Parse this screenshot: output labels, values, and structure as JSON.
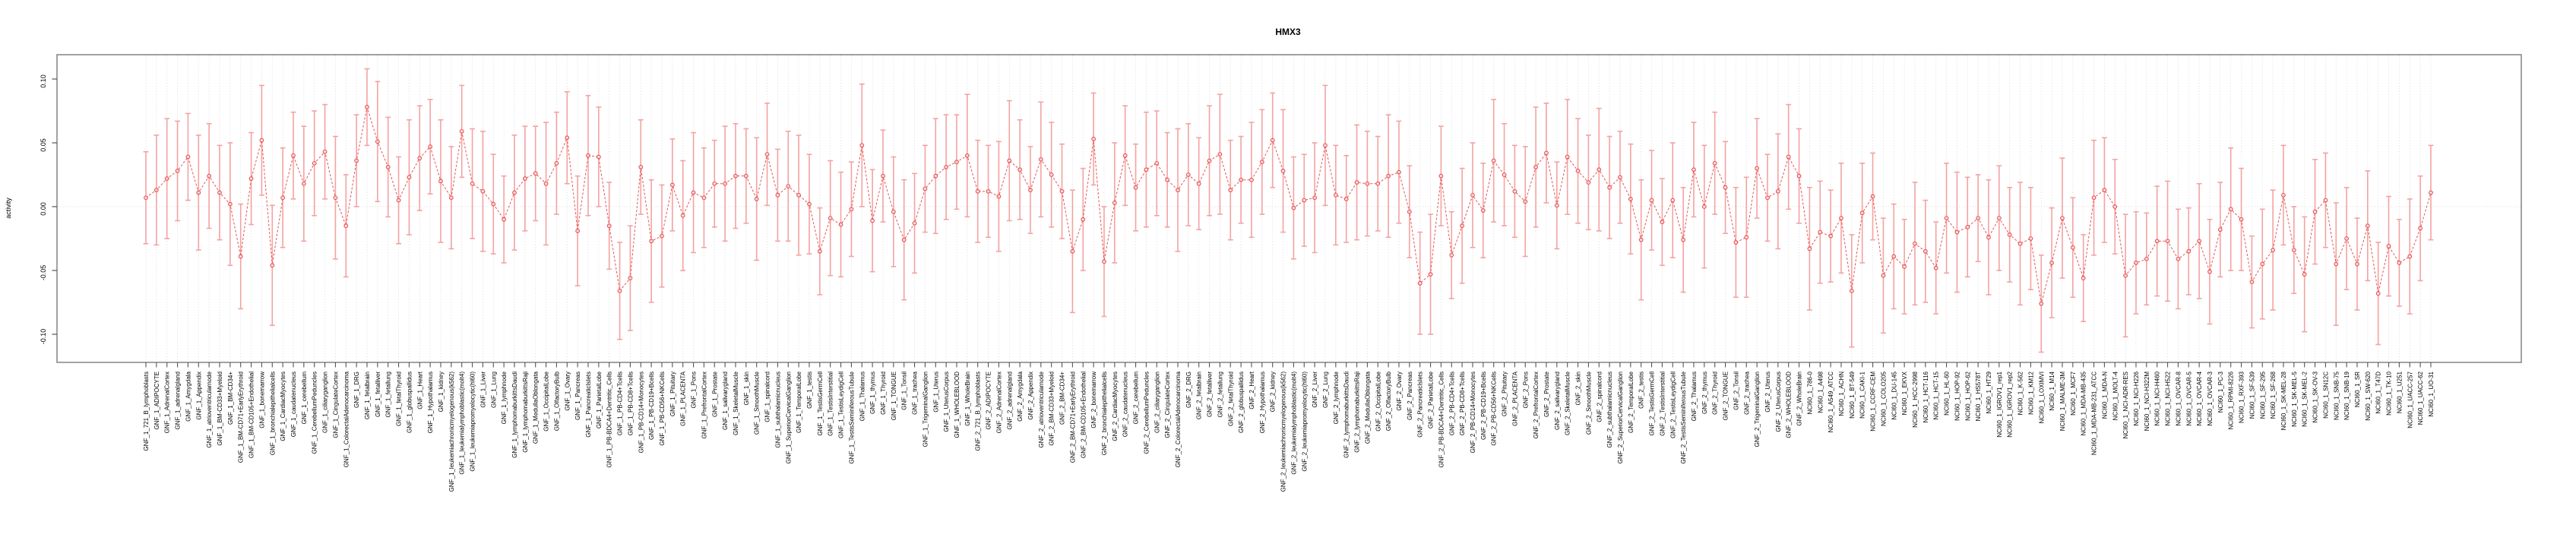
{
  "title": "HMX3",
  "ylabel": "activity",
  "colors": {
    "error_bar": "#f4a2a2",
    "line_point": "#e65555",
    "frame": "#8a8a8a",
    "tick": "#555555",
    "grid": "#d4d4d4",
    "text": "#000000",
    "background": "#ffffff"
  },
  "chart_data": {
    "type": "line",
    "title": "HMX3",
    "xlabel": "",
    "ylabel": "activity",
    "ylim": [
      -0.122,
      0.112
    ],
    "yticks": [
      0.1,
      0.05,
      0.0,
      -0.05,
      -0.1
    ],
    "ytick_labels": [
      "0.10",
      "0.05",
      "0.00",
      "-0.05",
      "-0.10"
    ],
    "grid": "vertical-dotted-per-category, dotted zero line",
    "legend": "none",
    "marker": "open-circle",
    "line_style": "dashed",
    "error_bars": true,
    "categories": [
      "GNF_1_721_B_lymphoblasts",
      "GNF_1_ADIPOCYTE",
      "GNF_1_AdrenalCortex",
      "GNF_1_adrenalgland",
      "GNF_1_Amygdala",
      "GNF_1_Appendix",
      "GNF_1_atrioventricularnode",
      "GNF_1_BM-CD33+Myeloid",
      "GNF_1_BM-CD34+",
      "GNF_1_BM-CD71+EarlyErythroid",
      "GNF_1_BM-CD105+Endothelial",
      "GNF_1_bonemarrow",
      "GNF_1_bronchialepithelialcells",
      "GNF_1_CardiacMyocytes",
      "GNF_1_caudatenucleus",
      "GNF_1_cerebellum",
      "GNF_1_CerebellumPeduncles",
      "GNF_1_ciliaryganglion",
      "GNF_1_CingulateCortex",
      "GNF_1_ColorectalAdenocarcinoma",
      "GNF_1_DRG",
      "GNF_1_fetalbrain",
      "GNF_1_fetalliver",
      "GNF_1_fetallung",
      "GNF_1_fetalThyroid",
      "GNF_1_globuspallidus",
      "GNF_1_Heart",
      "GNF_1_Hypothalamus",
      "GNF_1_kidney",
      "GNF_1_leukemiachronicmyelogenous(k562)",
      "GNF_1_leukemialymphoblastic(molt4)",
      "GNF_1_leukemiapromyelocytic(hl60)",
      "GNF_1_Liver",
      "GNF_1_Lung",
      "GNF_1_lymphnode",
      "GNF_1_lymphomaburkittsDaudi",
      "GNF_1_lymphomaburkittsRaji",
      "GNF_1_MedullaOblongata",
      "GNF_1_OccipitalLobe",
      "GNF_1_OlfactoryBulb",
      "GNF_1_Ovary",
      "GNF_1_Pancreas",
      "GNF_1_PancreaticIslets",
      "GNF_1_ParietalLobe",
      "GNF_1_PB-BDCA4+Dentritic_Cells",
      "GNF_1_PB-CD4+Tcells",
      "GNF_1_PB-CD8+Tcells",
      "GNF_1_PB-CD14+Monocytes",
      "GNF_1_PB-CD19+Bcells",
      "GNF_1_PB-CD56+NKCells",
      "GNF_1_Pituitary",
      "GNF_1_PLACENTA",
      "GNF_1_Pons",
      "GNF_1_PrefrontalCortex",
      "GNF_1_Prostate",
      "GNF_1_salivarygland",
      "GNF_1_SkeletalMuscle",
      "GNF_1_skin",
      "GNF_1_SmoothMuscle",
      "GNF_1_spinalcord",
      "GNF_1_subthalamicnucleus",
      "GNF_1_SuperiorCervicalGanglion",
      "GNF_1_TemporalLobe",
      "GNF_1_testis",
      "GNF_1_TestisGermCell",
      "GNF_1_TestisInterstitial",
      "GNF_1_TestisLeydigCell",
      "GNF_1_TestisSeminiferousTubule",
      "GNF_1_Thalamus",
      "GNF_1_thymus",
      "GNF_1_Thyroid",
      "GNF_1_TONGUE",
      "GNF_1_Tonsil",
      "GNF_1_trachea",
      "GNF_1_TrigeminalGanglion",
      "GNF_1_Uterus",
      "GNF_1_UterusCorpus",
      "GNF_1_WHOLEBLOOD",
      "GNF_1_WholeBrain",
      "GNF_2_721_B_lymphoblasts",
      "GNF_2_ADIPOCYTE",
      "GNF_2_AdrenalCortex",
      "GNF_2_adrenalgland",
      "GNF_2_Amygdala",
      "GNF_2_Appendix",
      "GNF_2_atrioventricularnode",
      "GNF_2_BM-CD33+Myeloid",
      "GNF_2_BM-CD34+",
      "GNF_2_BM-CD71+EarlyErythroid",
      "GNF_2_BM-CD105+Endothelial",
      "GNF_2_bonemarrow",
      "GNF_2_bronchialepithelialcells",
      "GNF_2_CardiacMyocytes",
      "GNF_2_caudatenucleus",
      "GNF_2_cerebellum",
      "GNF_2_CerebellumPeduncles",
      "GNF_2_ciliaryganglion",
      "GNF_2_CingulateCortex",
      "GNF_2_ColorectalAdenocarcinoma",
      "GNF_2_DRG",
      "GNF_2_fetalbrain",
      "GNF_2_fetalliver",
      "GNF_2_fetallung",
      "GNF_2_fetalThyroid",
      "GNF_2_globuspallidus",
      "GNF_2_Heart",
      "GNF_2_Hypothalamus",
      "GNF_2_kidney",
      "GNF_2_leukemiachronicmyelogenous(k562)",
      "GNF_2_leukemialymphoblastic(molt4)",
      "GNF_2_leukemiapromyelocytic(hl60)",
      "GNF_2_Liver",
      "GNF_2_Lung",
      "GNF_2_lymphnode",
      "GNF_2_lymphomaburkittsDaudi",
      "GNF_2_lymphomaburkittsRaji",
      "GNF_2_MedullaOblongata",
      "GNF_2_OccipitalLobe",
      "GNF_2_OlfactoryBulb",
      "GNF_2_Ovary",
      "GNF_2_Pancreas",
      "GNF_2_PancreaticIslets",
      "GNF_2_ParietalLobe",
      "GNF_2_PB-BDCA4+Dentritic_Cells",
      "GNF_2_PB-CD4+Tcells",
      "GNF_2_PB-CD8+Tcells",
      "GNF_2_PB-CD14+Monocytes",
      "GNF_2_PB-CD19+Bcells",
      "GNF_2_PB-CD56+NKCells",
      "GNF_2_Pituitary",
      "GNF_2_PLACENTA",
      "GNF_2_Pons",
      "GNF_2_PrefrontalCortex",
      "GNF_2_Prostate",
      "GNF_2_salivarygland",
      "GNF_2_SkeletalMuscle",
      "GNF_2_skin",
      "GNF_2_SmoothMuscle",
      "GNF_2_spinalcord",
      "GNF_2_subthalamicnucleus",
      "GNF_2_SuperiorCervicalGanglion",
      "GNF_2_TemporalLobe",
      "GNF_2_testis",
      "GNF_2_TestisGermCell",
      "GNF_2_TestisInterstitial",
      "GNF_2_TestisLeydigCell",
      "GNF_2_TestisSeminiferousTubule",
      "GNF_2_Thalamus",
      "GNF_2_thymus",
      "GNF_2_Thyroid",
      "GNF_2_TONGUE",
      "GNF_2_Tonsil",
      "GNF_2_trachea",
      "GNF_2_TrigeminalGanglion",
      "GNF_2_Uterus",
      "GNF_2_UterusCorpus",
      "GNF_2_WHOLEBLOOD",
      "GNF_2_WholeBrain",
      "NCI60_1_786-0",
      "NCI60_1_A498",
      "NCI60_1_A549_ATCC",
      "NCI60_1_ACHN",
      "NCI60_1_BT-549",
      "NCI60_1_CAKI-1",
      "NCI60_1_CCRF-CEM",
      "NCI60_1_COLO205",
      "NCI60_1_DU-145",
      "NCI60_1_EKVX",
      "NCI60_1_HCC-2998",
      "NCI60_1_HCT-116",
      "NCI60_1_HCT-15",
      "NCI60_1_HL-60",
      "NCI60_1_HOP-92",
      "NCI60_1_HOP-62",
      "NCI60_1_HS578T",
      "NCI60_1_HT29",
      "NCI60_1_IGROV1_rep1",
      "NCI60_1_IGROV1_rep2",
      "NCI60_1_K-562",
      "NCI60_1_KM12",
      "NCI60_1_LOXIMVI",
      "NCI60_1_M14",
      "NCI60_1_MALME-3M",
      "NCI60_1_MCF7",
      "NCI60_1_MDA-MB-435",
      "NCI60_1_MDA-MB-231_ATCC",
      "NCI60_1_MDA-N",
      "NCI60_1_MOLT-4",
      "NCI60_1_NCI-ADR-RES",
      "NCI60_1_NCI-H226",
      "NCI60_1_NCI-H322M",
      "NCI60_1_NCI-H460",
      "NCI60_1_NCI-H522",
      "NCI60_1_OVCAR-8",
      "NCI60_1_OVCAR-5",
      "NCI60_1_OVCAR-4",
      "NCI60_1_OVCAR-3",
      "NCI60_1_PC-3",
      "NCI60_1_RPMI-8226",
      "NCI60_1_RXF-393",
      "NCI60_1_SF-539",
      "NCI60_1_SF-295",
      "NCI60_1_SF-268",
      "NCI60_1_SK-MEL-28",
      "NCI60_1_SK-MEL-5",
      "NCI60_1_SK-MEL-2",
      "NCI60_1_SK-OV-3",
      "NCI60_1_SN12C",
      "NCI60_1_SNB-75",
      "NCI60_1_SNB-19",
      "NCI60_1_SR",
      "NCI60_1_SW-620",
      "NCI60_1_T47D",
      "NCI60_1_TK-10",
      "NCI60_1_U251",
      "NCI60_1_UACC-257",
      "NCI60_1_UACC-62",
      "NCI60_1_UO-31"
    ],
    "values": [
      0.007,
      0.013,
      0.022,
      0.028,
      0.039,
      0.011,
      0.024,
      0.011,
      0.002,
      -0.039,
      0.022,
      0.052,
      -0.046,
      0.007,
      0.04,
      0.018,
      0.034,
      0.043,
      0.007,
      -0.015,
      0.036,
      0.078,
      0.051,
      0.031,
      0.005,
      0.023,
      0.038,
      0.047,
      0.02,
      0.007,
      0.059,
      0.018,
      0.012,
      0.002,
      -0.01,
      0.011,
      0.022,
      0.026,
      0.018,
      0.034,
      0.054,
      -0.019,
      0.04,
      0.039,
      -0.015,
      -0.066,
      -0.056,
      0.031,
      -0.027,
      -0.023,
      0.017,
      -0.007,
      0.011,
      0.007,
      0.018,
      0.018,
      0.024,
      0.024,
      0.006,
      0.041,
      0.009,
      0.016,
      0.009,
      0.002,
      -0.035,
      -0.009,
      -0.014,
      -0.002,
      0.048,
      -0.011,
      0.024,
      -0.004,
      -0.026,
      -0.013,
      0.014,
      0.024,
      0.031,
      0.035,
      0.04,
      0.012,
      0.012,
      0.008,
      0.036,
      0.029,
      0.013,
      0.037,
      0.025,
      0.012,
      -0.035,
      -0.01,
      0.053,
      -0.043,
      0.003,
      0.04,
      0.015,
      0.029,
      0.034,
      0.021,
      0.013,
      0.025,
      0.018,
      0.036,
      0.041,
      0.013,
      0.021,
      0.021,
      0.035,
      0.052,
      0.028,
      -0.001,
      0.005,
      0.007,
      0.048,
      0.009,
      0.006,
      0.019,
      0.018,
      0.018,
      0.024,
      0.027,
      -0.004,
      -0.06,
      -0.053,
      0.024,
      -0.038,
      -0.015,
      0.009,
      -0.003,
      0.036,
      0.025,
      0.012,
      0.004,
      0.031,
      0.042,
      0.001,
      0.039,
      0.028,
      0.019,
      0.029,
      0.015,
      0.023,
      0.006,
      -0.026,
      0.005,
      -0.012,
      0.005,
      -0.026,
      0.029,
      0.0,
      0.034,
      0.015,
      -0.028,
      -0.024,
      0.03,
      0.007,
      0.012,
      0.039,
      0.024,
      -0.033,
      -0.02,
      -0.023,
      -0.009,
      -0.066,
      -0.005,
      0.008,
      -0.054,
      -0.039,
      -0.047,
      -0.029,
      -0.035,
      -0.048,
      -0.009,
      -0.02,
      -0.016,
      -0.009,
      -0.024,
      -0.009,
      -0.022,
      -0.029,
      -0.025,
      -0.076,
      -0.044,
      -0.009,
      -0.032,
      -0.056,
      0.007,
      0.013,
      0.0,
      -0.054,
      -0.044,
      -0.041,
      -0.027,
      -0.027,
      -0.041,
      -0.035,
      -0.027,
      -0.051,
      -0.018,
      -0.002,
      -0.01,
      -0.059,
      -0.045,
      -0.034,
      0.009,
      -0.034,
      -0.053,
      -0.004,
      0.005,
      -0.045,
      -0.025,
      -0.045,
      -0.015,
      -0.068,
      -0.031,
      -0.044,
      -0.039,
      -0.017,
      0.011
    ],
    "errors": [
      0.036,
      0.043,
      0.047,
      0.039,
      0.034,
      0.045,
      0.041,
      0.037,
      0.048,
      0.041,
      0.036,
      0.043,
      0.047,
      0.039,
      0.034,
      0.045,
      0.041,
      0.037,
      0.048,
      0.04,
      0.036,
      0.03,
      0.047,
      0.039,
      0.034,
      0.045,
      0.041,
      0.037,
      0.048,
      0.04,
      0.036,
      0.043,
      0.047,
      0.039,
      0.034,
      0.045,
      0.041,
      0.037,
      0.048,
      0.04,
      0.036,
      0.043,
      0.047,
      0.039,
      0.034,
      0.038,
      0.041,
      0.037,
      0.048,
      0.04,
      0.036,
      0.043,
      0.047,
      0.039,
      0.034,
      0.045,
      0.041,
      0.037,
      0.048,
      0.04,
      0.036,
      0.043,
      0.047,
      0.039,
      0.034,
      0.045,
      0.041,
      0.037,
      0.048,
      0.04,
      0.036,
      0.043,
      0.047,
      0.039,
      0.034,
      0.045,
      0.041,
      0.037,
      0.048,
      0.04,
      0.036,
      0.043,
      0.047,
      0.039,
      0.034,
      0.045,
      0.041,
      0.037,
      0.048,
      0.04,
      0.036,
      0.043,
      0.047,
      0.039,
      0.034,
      0.045,
      0.041,
      0.037,
      0.048,
      0.04,
      0.036,
      0.043,
      0.047,
      0.039,
      0.034,
      0.045,
      0.041,
      0.037,
      0.048,
      0.04,
      0.036,
      0.043,
      0.047,
      0.039,
      0.034,
      0.045,
      0.041,
      0.037,
      0.048,
      0.04,
      0.036,
      0.04,
      0.047,
      0.039,
      0.034,
      0.045,
      0.041,
      0.037,
      0.048,
      0.04,
      0.036,
      0.043,
      0.047,
      0.039,
      0.034,
      0.045,
      0.041,
      0.037,
      0.048,
      0.04,
      0.036,
      0.043,
      0.047,
      0.039,
      0.034,
      0.045,
      0.041,
      0.037,
      0.048,
      0.04,
      0.036,
      0.043,
      0.047,
      0.039,
      0.034,
      0.045,
      0.041,
      0.037,
      0.048,
      0.04,
      0.036,
      0.043,
      0.044,
      0.039,
      0.034,
      0.045,
      0.041,
      0.037,
      0.048,
      0.04,
      0.036,
      0.043,
      0.047,
      0.039,
      0.034,
      0.045,
      0.041,
      0.037,
      0.048,
      0.04,
      0.038,
      0.043,
      0.047,
      0.039,
      0.034,
      0.045,
      0.041,
      0.037,
      0.048,
      0.04,
      0.036,
      0.043,
      0.047,
      0.039,
      0.034,
      0.045,
      0.041,
      0.037,
      0.048,
      0.04,
      0.036,
      0.043,
      0.047,
      0.039,
      0.034,
      0.045,
      0.041,
      0.037,
      0.048,
      0.04,
      0.036,
      0.043,
      0.04,
      0.039,
      0.034,
      0.045,
      0.041,
      0.037
    ]
  }
}
